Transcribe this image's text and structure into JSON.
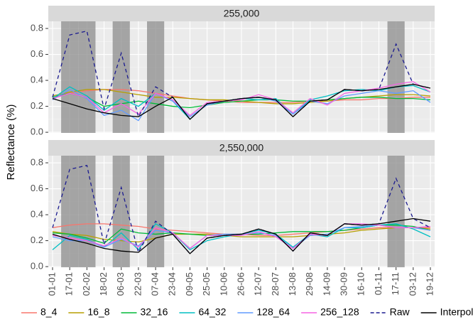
{
  "chart_data": [
    {
      "type": "line",
      "title": "255,000",
      "ylabel": "Reflectance (%)",
      "ylim": [
        -0.005,
        0.855
      ],
      "yticks": [
        {
          "value": 0,
          "label": "0.0"
        },
        0.2,
        0.4,
        0.6,
        0.8
      ],
      "shaded": [
        "17-01",
        "02-02",
        "06-03",
        "07-04",
        "17-11"
      ],
      "series": [
        {
          "name": "8_4",
          "color": "#F8766D",
          "values": [
            0.27,
            0.3,
            0.32,
            0.33,
            0.33,
            0.32,
            0.3,
            0.28,
            0.26,
            0.25,
            0.24,
            0.23,
            0.23,
            0.23,
            0.23,
            0.24,
            0.24,
            0.25,
            0.25,
            0.26,
            0.26,
            0.27,
            0.27
          ]
        },
        {
          "name": "16_8",
          "color": "#B79F00",
          "values": [
            0.28,
            0.31,
            0.33,
            0.33,
            0.31,
            0.29,
            0.27,
            0.27,
            0.26,
            0.25,
            0.25,
            0.24,
            0.23,
            0.22,
            0.22,
            0.23,
            0.24,
            0.26,
            0.27,
            0.28,
            0.29,
            0.29,
            0.28
          ]
        },
        {
          "name": "32_16",
          "color": "#00BA38",
          "values": [
            0.27,
            0.3,
            0.27,
            0.2,
            0.22,
            0.24,
            0.22,
            0.2,
            0.19,
            0.21,
            0.23,
            0.24,
            0.25,
            0.25,
            0.24,
            0.24,
            0.25,
            0.26,
            0.27,
            0.27,
            0.26,
            0.26,
            0.25
          ]
        },
        {
          "name": "64_32",
          "color": "#00BFC4",
          "values": [
            0.26,
            0.35,
            0.28,
            0.17,
            0.26,
            0.2,
            0.3,
            0.24,
            0.1,
            0.22,
            0.24,
            0.26,
            0.25,
            0.26,
            0.14,
            0.25,
            0.28,
            0.32,
            0.33,
            0.32,
            0.35,
            0.36,
            0.31
          ]
        },
        {
          "name": "128_64",
          "color": "#619CFF",
          "values": [
            0.25,
            0.33,
            0.26,
            0.13,
            0.17,
            0.09,
            0.3,
            0.24,
            0.12,
            0.21,
            0.24,
            0.26,
            0.27,
            0.24,
            0.14,
            0.24,
            0.22,
            0.28,
            0.3,
            0.32,
            0.3,
            0.32,
            0.23
          ]
        },
        {
          "name": "256_128",
          "color": "#F564E3",
          "values": [
            0.26,
            0.3,
            0.27,
            0.15,
            0.22,
            0.14,
            0.3,
            0.25,
            0.13,
            0.23,
            0.24,
            0.25,
            0.29,
            0.25,
            0.15,
            0.26,
            0.21,
            0.3,
            0.32,
            0.34,
            0.37,
            0.39,
            0.31
          ]
        },
        {
          "name": "Raw",
          "color": "#1B1B8F",
          "dash": true,
          "values": [
            0.27,
            0.75,
            0.78,
            0.18,
            0.61,
            0.12,
            0.35,
            0.27,
            0.1,
            0.22,
            0.24,
            0.26,
            0.27,
            0.25,
            0.12,
            0.24,
            0.25,
            0.33,
            0.32,
            0.33,
            0.68,
            0.37,
            0.34
          ]
        },
        {
          "name": "Interpolated",
          "color": "#000000",
          "values": [
            0.26,
            0.22,
            0.18,
            0.15,
            0.13,
            0.12,
            0.2,
            0.27,
            0.1,
            0.22,
            0.24,
            0.26,
            0.27,
            0.25,
            0.12,
            0.24,
            0.25,
            0.33,
            0.32,
            0.33,
            0.35,
            0.37,
            0.34
          ]
        }
      ]
    },
    {
      "type": "line",
      "title": "2,550,000",
      "categories": [
        "01-01",
        "17-01",
        "02-02",
        "18-02",
        "06-03",
        "22-03",
        "07-04",
        "23-04",
        "09-05",
        "25-05",
        "10-06",
        "26-06",
        "12-07",
        "28-07",
        "13-08",
        "29-08",
        "14-09",
        "30-09",
        "16-10",
        "01-11",
        "17-11",
        "03-12",
        "19-12"
      ],
      "ylim": [
        -0.005,
        0.855
      ],
      "yticks": [
        {
          "value": 0,
          "label": "0.0"
        },
        0.2,
        0.4,
        0.6,
        0.8
      ],
      "shaded": [
        "17-01",
        "02-02",
        "06-03",
        "07-04",
        "17-11"
      ],
      "series": [
        {
          "values": [
            0.3,
            0.32,
            0.33,
            0.33,
            0.32,
            0.31,
            0.29,
            0.28,
            0.27,
            0.26,
            0.25,
            0.25,
            0.24,
            0.24,
            0.25,
            0.26,
            0.27,
            0.28,
            0.29,
            0.3,
            0.3,
            0.3,
            0.3
          ]
        },
        {
          "values": [
            0.27,
            0.25,
            0.24,
            0.21,
            0.2,
            0.19,
            0.22,
            0.25,
            0.25,
            0.25,
            0.24,
            0.23,
            0.23,
            0.23,
            0.23,
            0.24,
            0.25,
            0.26,
            0.28,
            0.29,
            0.3,
            0.3,
            0.29
          ]
        },
        {
          "values": [
            0.26,
            0.25,
            0.22,
            0.18,
            0.29,
            0.26,
            0.25,
            0.26,
            0.25,
            0.24,
            0.24,
            0.25,
            0.25,
            0.26,
            0.27,
            0.27,
            0.27,
            0.28,
            0.3,
            0.32,
            0.32,
            0.31,
            0.28
          ]
        },
        {
          "values": [
            0.13,
            0.24,
            0.21,
            0.15,
            0.26,
            0.13,
            0.33,
            0.26,
            0.13,
            0.2,
            0.23,
            0.25,
            0.28,
            0.25,
            0.15,
            0.25,
            0.23,
            0.3,
            0.3,
            0.32,
            0.33,
            0.29,
            0.23
          ]
        },
        {
          "values": [
            0.23,
            0.2,
            0.2,
            0.15,
            0.21,
            0.16,
            0.28,
            0.26,
            0.14,
            0.24,
            0.25,
            0.25,
            0.26,
            0.24,
            0.14,
            0.24,
            0.25,
            0.3,
            0.31,
            0.32,
            0.3,
            0.3,
            0.28
          ]
        },
        {
          "values": [
            0.24,
            0.22,
            0.2,
            0.16,
            0.22,
            0.15,
            0.3,
            0.26,
            0.14,
            0.24,
            0.24,
            0.24,
            0.27,
            0.23,
            0.14,
            0.25,
            0.24,
            0.33,
            0.33,
            0.32,
            0.3,
            0.3,
            0.31
          ]
        },
        {
          "values": [
            0.3,
            0.75,
            0.78,
            0.17,
            0.61,
            0.11,
            0.35,
            0.25,
            0.1,
            0.22,
            0.24,
            0.25,
            0.29,
            0.25,
            0.12,
            0.26,
            0.24,
            0.33,
            0.32,
            0.33,
            0.68,
            0.37,
            0.3
          ]
        },
        {
          "values": [
            0.25,
            0.21,
            0.18,
            0.14,
            0.12,
            0.11,
            0.22,
            0.25,
            0.1,
            0.22,
            0.24,
            0.25,
            0.29,
            0.25,
            0.12,
            0.26,
            0.24,
            0.33,
            0.32,
            0.33,
            0.35,
            0.37,
            0.35
          ]
        }
      ]
    }
  ]
}
